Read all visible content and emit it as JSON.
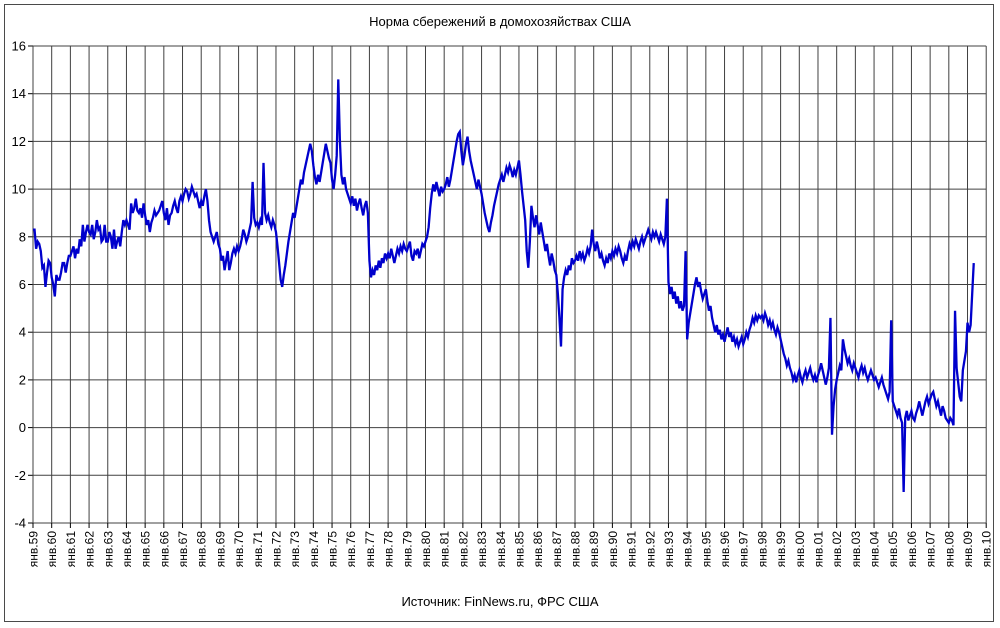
{
  "header": {
    "title": "Норма сбережений в домохозяйствах США"
  },
  "footer": {
    "source": "Источник: FinNews.ru, ФРС США"
  },
  "chart_data": {
    "type": "line",
    "title": "Норма сбережений в домохозяйствах США",
    "source": "Источник: FinNews.ru, ФРС США",
    "xlabel": "",
    "ylabel": "",
    "ylim": [
      -4,
      16
    ],
    "y_tick_step": 2,
    "grid": true,
    "legend": "none",
    "line_color": "#0000cc",
    "grid_color": "#404040",
    "frequency": "monthly",
    "start_month": "1959-01",
    "end_month": "2009-05",
    "x_tick_labels": [
      "янв.59",
      "янв.60",
      "янв.61",
      "янв.62",
      "янв.63",
      "янв.64",
      "янв.65",
      "янв.66",
      "янв.67",
      "янв.68",
      "янв.69",
      "янв.70",
      "янв.71",
      "янв.72",
      "янв.73",
      "янв.74",
      "янв.75",
      "янв.76",
      "янв.77",
      "янв.78",
      "янв.79",
      "янв.80",
      "янв.81",
      "янв.82",
      "янв.83",
      "янв.84",
      "янв.85",
      "янв.86",
      "янв.87",
      "янв.88",
      "янв.89",
      "янв.90",
      "янв.91",
      "янв.92",
      "янв.93",
      "янв.94",
      "янв.95",
      "янв.96",
      "янв.97",
      "янв.98",
      "янв.99",
      "янв.00",
      "янв.01",
      "янв.02",
      "янв.03",
      "янв.04",
      "янв.05",
      "янв.06",
      "янв.07",
      "янв.08",
      "янв.09",
      "янв.10"
    ],
    "y_tick_labels": [
      16,
      14,
      12,
      10,
      8,
      6,
      4,
      2,
      0,
      -2,
      -4
    ],
    "values": [
      8.3,
      8.3,
      7.5,
      7.8,
      7.7,
      7.4,
      6.7,
      6.8,
      5.9,
      6.5,
      7.0,
      6.9,
      6.3,
      6.0,
      5.5,
      6.4,
      6.2,
      6.2,
      6.5,
      6.9,
      6.9,
      6.5,
      6.9,
      7.2,
      7.2,
      7.4,
      7.6,
      7.1,
      7.5,
      7.3,
      7.9,
      7.6,
      8.5,
      7.8,
      8.2,
      8.5,
      8.2,
      8.1,
      8.5,
      7.9,
      8.2,
      8.7,
      8.3,
      8.4,
      7.8,
      7.9,
      8.5,
      7.8,
      7.8,
      8.2,
      8.0,
      7.5,
      8.3,
      7.5,
      7.8,
      8.0,
      7.6,
      8.2,
      8.7,
      8.5,
      8.7,
      8.5,
      8.3,
      9.4,
      9.0,
      9.2,
      9.6,
      9.1,
      9.0,
      9.2,
      8.8,
      9.4,
      8.9,
      8.5,
      8.7,
      8.2,
      8.6,
      8.8,
      9.1,
      8.9,
      9.0,
      9.1,
      9.3,
      9.5,
      9.0,
      8.7,
      9.2,
      8.5,
      8.9,
      9.0,
      9.3,
      9.5,
      9.2,
      9.0,
      9.5,
      9.7,
      9.5,
      9.8,
      10.0,
      9.9,
      9.6,
      9.8,
      10.1,
      9.9,
      9.7,
      9.8,
      9.5,
      9.2,
      9.5,
      9.3,
      9.7,
      10.0,
      9.5,
      8.7,
      8.2,
      8.0,
      7.8,
      8.0,
      8.2,
      7.7,
      7.5,
      7.0,
      7.2,
      6.6,
      7.0,
      7.4,
      6.6,
      6.9,
      7.3,
      7.5,
      7.3,
      7.6,
      7.4,
      7.6,
      7.9,
      8.3,
      8.1,
      7.8,
      8.0,
      8.3,
      8.6,
      10.3,
      8.8,
      8.5,
      8.6,
      8.4,
      8.7,
      8.5,
      11.1,
      9.0,
      8.7,
      8.9,
      8.6,
      8.4,
      8.7,
      8.5,
      8.2,
      7.6,
      6.9,
      6.2,
      5.9,
      6.4,
      6.8,
      7.3,
      7.8,
      8.2,
      8.6,
      9.0,
      8.8,
      9.2,
      9.6,
      10.0,
      10.4,
      10.2,
      10.7,
      11.0,
      11.3,
      11.6,
      11.9,
      11.6,
      11.0,
      10.5,
      10.2,
      10.6,
      10.3,
      10.7,
      11.1,
      11.5,
      11.9,
      11.6,
      11.3,
      11.1,
      10.4,
      10.0,
      10.6,
      11.4,
      14.6,
      12.1,
      10.6,
      10.2,
      10.5,
      10.0,
      9.8,
      9.6,
      9.4,
      9.7,
      9.3,
      9.6,
      9.1,
      9.4,
      9.6,
      9.2,
      8.9,
      9.3,
      9.5,
      9.0,
      7.0,
      6.3,
      6.6,
      6.4,
      6.8,
      6.6,
      7.0,
      6.7,
      7.1,
      6.9,
      7.3,
      7.1,
      7.3,
      7.1,
      7.5,
      7.2,
      6.9,
      7.2,
      7.5,
      7.3,
      7.6,
      7.4,
      7.7,
      7.5,
      7.4,
      7.6,
      7.8,
      7.2,
      7.0,
      7.4,
      7.3,
      7.5,
      7.1,
      7.4,
      7.7,
      7.6,
      7.8,
      8.0,
      8.4,
      9.2,
      9.8,
      10.2,
      9.9,
      10.3,
      10.0,
      9.7,
      10.1,
      9.9,
      10.0,
      10.2,
      10.5,
      10.1,
      10.4,
      10.8,
      11.2,
      11.6,
      12.0,
      12.3,
      12.4,
      11.6,
      11.0,
      11.4,
      11.9,
      12.2,
      11.6,
      11.2,
      10.9,
      10.6,
      10.3,
      10.0,
      10.4,
      10.1,
      9.8,
      9.4,
      9.0,
      8.7,
      8.4,
      8.2,
      8.6,
      8.9,
      9.3,
      9.6,
      9.9,
      10.2,
      10.4,
      10.6,
      10.3,
      10.6,
      10.9,
      10.7,
      11.0,
      10.8,
      10.5,
      10.8,
      10.6,
      10.9,
      11.2,
      10.6,
      9.9,
      9.3,
      8.7,
      7.4,
      6.7,
      7.8,
      9.3,
      8.8,
      8.4,
      8.9,
      8.5,
      8.1,
      8.6,
      8.2,
      7.8,
      7.4,
      7.7,
      7.2,
      6.8,
      7.3,
      7.0,
      6.6,
      6.4,
      5.6,
      4.6,
      3.4,
      5.8,
      6.3,
      6.6,
      6.4,
      6.8,
      6.6,
      7.1,
      6.9,
      7.0,
      7.2,
      7.0,
      7.4,
      7.1,
      7.3,
      7.0,
      7.2,
      7.5,
      7.3,
      7.6,
      8.3,
      7.7,
      7.4,
      7.8,
      7.5,
      7.1,
      7.3,
      7.0,
      6.8,
      7.1,
      6.9,
      7.3,
      7.1,
      7.4,
      7.2,
      7.5,
      7.3,
      7.6,
      7.4,
      7.1,
      6.9,
      7.2,
      7.0,
      7.4,
      7.7,
      7.5,
      7.8,
      7.6,
      7.9,
      7.7,
      7.5,
      7.8,
      8.0,
      7.7,
      7.9,
      8.1,
      8.3,
      8.1,
      7.9,
      8.2,
      8.0,
      8.2,
      8.0,
      7.8,
      8.1,
      7.9,
      7.7,
      8.0,
      9.6,
      6.1,
      5.6,
      5.9,
      5.4,
      5.7,
      5.2,
      5.5,
      5.0,
      5.3,
      4.9,
      5.1,
      7.4,
      3.7,
      4.4,
      4.8,
      5.2,
      5.6,
      6.0,
      6.3,
      5.9,
      6.1,
      5.7,
      5.4,
      5.6,
      5.8,
      5.3,
      4.9,
      5.1,
      4.6,
      4.3,
      4.0,
      4.3,
      3.9,
      4.1,
      3.7,
      3.9,
      3.6,
      3.9,
      4.2,
      3.8,
      4.0,
      3.6,
      3.8,
      3.5,
      3.7,
      3.4,
      3.6,
      3.8,
      3.5,
      3.7,
      4.0,
      3.8,
      4.1,
      4.3,
      4.6,
      4.4,
      4.7,
      4.5,
      4.7,
      4.6,
      4.7,
      4.5,
      4.8,
      4.6,
      4.3,
      4.5,
      4.2,
      4.4,
      4.1,
      3.9,
      4.2,
      4.0,
      3.7,
      3.4,
      3.1,
      2.9,
      2.6,
      2.8,
      2.5,
      2.3,
      2.0,
      2.2,
      1.9,
      2.2,
      2.4,
      2.1,
      1.9,
      2.2,
      2.4,
      2.1,
      2.3,
      2.5,
      2.2,
      2.0,
      2.2,
      1.9,
      2.2,
      2.4,
      2.7,
      2.4,
      2.1,
      1.8,
      2.1,
      2.5,
      4.6,
      -0.3,
      0.9,
      1.6,
      2.0,
      2.3,
      2.6,
      2.4,
      3.7,
      3.3,
      3.0,
      2.7,
      2.9,
      2.6,
      2.4,
      2.7,
      2.5,
      2.3,
      2.1,
      2.4,
      2.6,
      2.3,
      2.5,
      2.2,
      2.0,
      2.2,
      2.4,
      2.2,
      2.0,
      2.1,
      1.9,
      1.7,
      1.9,
      2.1,
      1.8,
      1.6,
      1.4,
      1.2,
      1.5,
      4.5,
      1.1,
      0.9,
      0.7,
      0.5,
      0.8,
      0.4,
      0.2,
      -2.7,
      0.4,
      0.7,
      0.3,
      0.5,
      0.7,
      0.4,
      0.3,
      0.6,
      0.8,
      1.1,
      0.8,
      0.5,
      0.8,
      1.1,
      1.3,
      1.0,
      1.2,
      1.4,
      1.5,
      1.2,
      0.9,
      1.1,
      0.8,
      0.5,
      0.9,
      0.7,
      0.4,
      0.3,
      0.2,
      0.4,
      0.3,
      0.1,
      4.9,
      2.5,
      1.9,
      1.3,
      1.1,
      2.4,
      2.8,
      3.2,
      4.4,
      4.0,
      4.3,
      5.6,
      6.9
    ]
  }
}
